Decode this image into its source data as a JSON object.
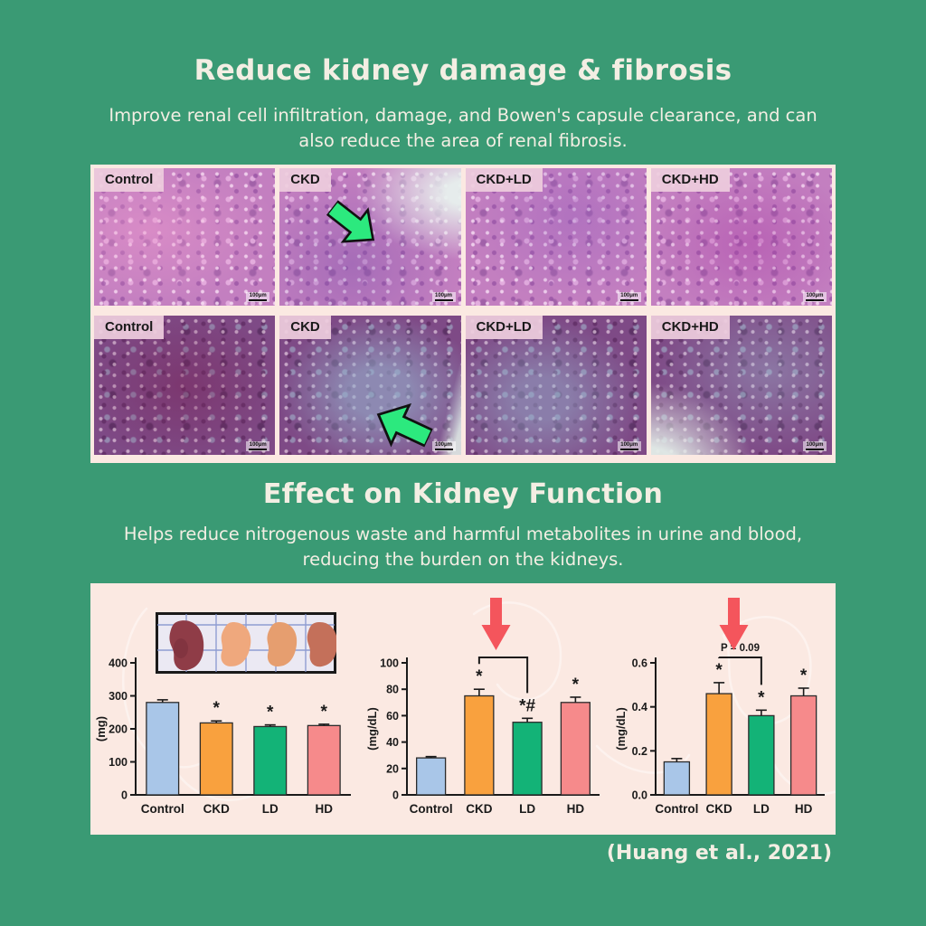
{
  "colors": {
    "background": "#3a9a74",
    "panel": "#fbe9e2",
    "heading_text": "#f3eee3",
    "axis": "#1a1a1a",
    "bar_blue": "#a9c6e8",
    "bar_orange": "#f9a13e",
    "bar_green": "#13b377",
    "bar_pink": "#f68a8b",
    "green_arrow": "#2ce97e",
    "red_arrow": "#f4555c"
  },
  "section1": {
    "title": "Reduce kidney damage & fibrosis",
    "subtitle": "Improve renal cell infiltration, damage, and Bowen's capsule clearance, and can also reduce the area of renal fibrosis."
  },
  "histology": {
    "scale_bar_label": "100μm",
    "rows": [
      {
        "tiles": [
          {
            "label": "Control"
          },
          {
            "label": "CKD"
          },
          {
            "label": "CKD+LD"
          },
          {
            "label": "CKD+HD"
          }
        ]
      },
      {
        "tiles": [
          {
            "label": "Control"
          },
          {
            "label": "CKD"
          },
          {
            "label": "CKD+LD"
          },
          {
            "label": "CKD+HD"
          }
        ]
      }
    ]
  },
  "section2": {
    "title": "Effect on Kidney Function",
    "subtitle": "Helps reduce nitrogenous waste and harmful metabolites in urine and blood, reducing the burden on the kidneys."
  },
  "citation": "(Huang et al., 2021)",
  "chart_data": [
    {
      "type": "bar",
      "ylabel": "(mg)",
      "categories": [
        "Control",
        "CKD",
        "LD",
        "HD"
      ],
      "values": [
        280,
        218,
        207,
        210
      ],
      "errors": [
        8,
        6,
        5,
        4
      ],
      "significance": [
        "",
        "*",
        "*",
        "*"
      ],
      "ylim": [
        0,
        400
      ],
      "yticks": [
        "0",
        "100",
        "200",
        "300",
        "400"
      ],
      "bar_colors": [
        "#a9c6e8",
        "#f9a13e",
        "#13b377",
        "#f68a8b"
      ],
      "bracket": null,
      "down_arrow": false,
      "arrow_color": "#f4555c",
      "grid": false,
      "legend": false
    },
    {
      "type": "bar",
      "ylabel": "(mg/dL)",
      "categories": [
        "Control",
        "CKD",
        "LD",
        "HD"
      ],
      "values": [
        28,
        75,
        55,
        70
      ],
      "errors": [
        1,
        5,
        3,
        4
      ],
      "significance": [
        "",
        "*",
        "*#",
        "*"
      ],
      "ylim": [
        0,
        100
      ],
      "yticks": [
        "0",
        "20",
        "40",
        "60",
        "80",
        "100"
      ],
      "bar_colors": [
        "#a9c6e8",
        "#f9a13e",
        "#13b377",
        "#f68a8b"
      ],
      "bracket": {
        "from": "CKD",
        "to": "LD",
        "label": ""
      },
      "down_arrow": true,
      "arrow_color": "#f4555c",
      "grid": false,
      "legend": false
    },
    {
      "type": "bar",
      "ylabel": "(mg/dL)",
      "categories": [
        "Control",
        "CKD",
        "LD",
        "HD"
      ],
      "values": [
        0.15,
        0.46,
        0.36,
        0.45
      ],
      "errors": [
        0.015,
        0.05,
        0.025,
        0.035
      ],
      "significance": [
        "",
        "*",
        "*",
        "*"
      ],
      "ylim": [
        0,
        0.6
      ],
      "yticks": [
        "0.0",
        "0.2",
        "0.4",
        "0.6"
      ],
      "bar_colors": [
        "#a9c6e8",
        "#f9a13e",
        "#13b377",
        "#f68a8b"
      ],
      "bracket": {
        "from": "CKD",
        "to": "LD",
        "label": "P = 0.09"
      },
      "down_arrow": true,
      "arrow_color": "#f4555c",
      "grid": false,
      "legend": false
    }
  ]
}
